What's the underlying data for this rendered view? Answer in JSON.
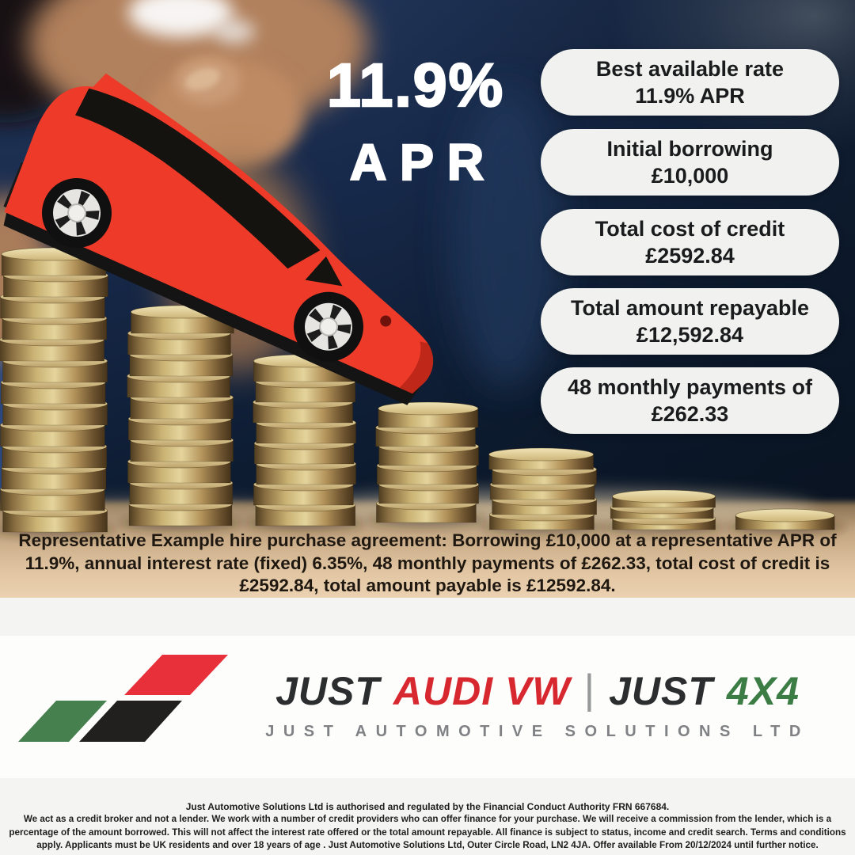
{
  "hero": {
    "rate": "11.9%",
    "apr_label": "APR"
  },
  "benefit_pills": [
    {
      "line1": "Best available rate",
      "line2": "11.9% APR"
    },
    {
      "line1": "Initial borrowing",
      "line2": "£10,000"
    },
    {
      "line1": "Total cost of credit",
      "line2": "£2592.84"
    },
    {
      "line1": "Total amount repayable",
      "line2": "£12,592.84"
    },
    {
      "line1": "48 monthly payments of",
      "line2": "£262.33"
    }
  ],
  "representative_example": "Representative Example hire purchase agreement: Borrowing £10,000 at a representative APR of 11.9%, annual interest rate (fixed) 6.35%, 48 monthly payments of £262.33, total cost of credit is £2592.84, total amount payable is £12592.84.",
  "brand": {
    "word1": "JUST",
    "word2": "AUDI VW",
    "separator": "|",
    "word3": "JUST",
    "word4": "4X4",
    "tagline": "JUST AUTOMOTIVE SOLUTIONS LTD"
  },
  "legal": {
    "authorisation": "Just Automotive Solutions Ltd is authorised and regulated by the Financial Conduct Authority FRN 667684.",
    "body": "We act as a credit broker and not a lender. We work with a number of credit providers who can offer finance for your purchase. We will receive a commission from the lender, which is a percentage of the amount borrowed. This will not affect the interest rate offered or the total amount repayable. All finance is subject to status, income and credit search. Terms and conditions apply. Applicants must be UK residents and over 18 years of age . Just Automotive Solutions Ltd, Outer Circle Road, LN2 4JA. Offer available From 20/12/2024 until further notice."
  },
  "colors": {
    "navy_background": "#14263f",
    "pill_background": "#f1f2ef",
    "toy_car_red": "#ee3a28",
    "brand_red": "#d7282f",
    "brand_green": "#3c7d46",
    "brand_charcoal": "#2b2d2f",
    "coin_gold": "#c9b272",
    "table_tan": "#e2c5a2",
    "headline_white": "#ffffff"
  }
}
